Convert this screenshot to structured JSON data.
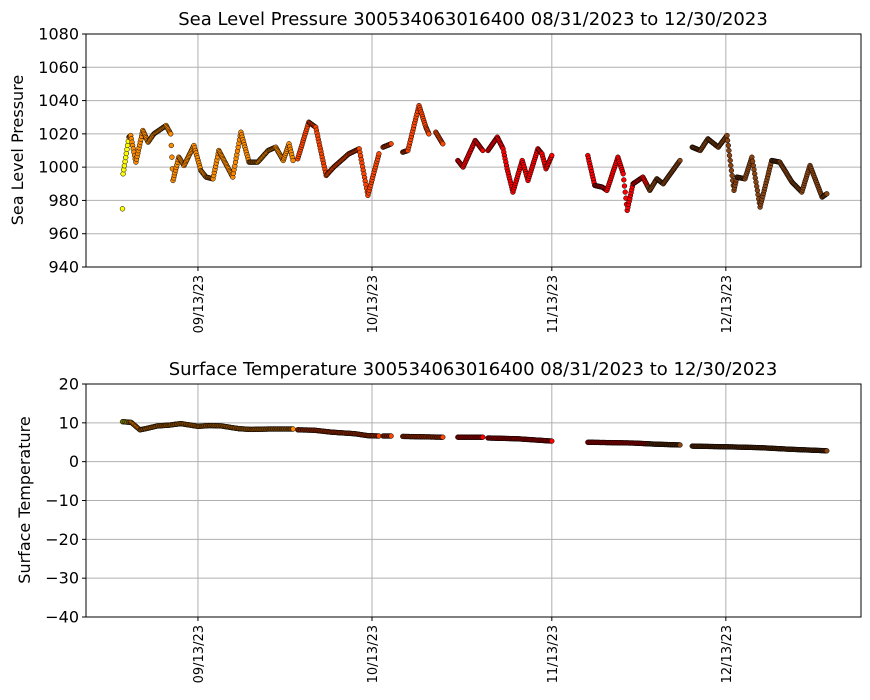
{
  "chart_data": [
    {
      "type": "scatter",
      "title": "Sea Level Pressure 300534063016400  08/31/2023 to 12/30/2023",
      "xlabel": "",
      "ylabel": "Sea Level Pressure",
      "x_units": "days since 08/31/2023",
      "xlim": [
        -6.3,
        127.3
      ],
      "ylim": [
        940,
        1080
      ],
      "yticks": [
        940,
        960,
        980,
        1000,
        1020,
        1040,
        1060,
        1080
      ],
      "xticks": [
        {
          "day": 13,
          "label": "09/13/23"
        },
        {
          "day": 43,
          "label": "10/13/23"
        },
        {
          "day": 74,
          "label": "11/13/23"
        },
        {
          "day": 104,
          "label": "12/13/23"
        }
      ],
      "grid": true,
      "segments": [
        [
          [
            0,
            975
          ],
          [
            0.1,
            996
          ],
          [
            1.1,
            1018
          ],
          [
            1.4,
            1019
          ],
          [
            2.3,
            1003
          ],
          [
            3.5,
            1022
          ],
          [
            4.4,
            1015
          ],
          [
            5.4,
            1020
          ],
          [
            7.5,
            1025
          ],
          [
            8.3,
            1020
          ],
          [
            8.7,
            992
          ],
          [
            9.7,
            1006
          ],
          [
            10.6,
            1001
          ],
          [
            12.3,
            1013
          ],
          [
            13.5,
            998
          ],
          [
            14.4,
            994
          ],
          [
            15.6,
            993
          ],
          [
            16.6,
            1010
          ],
          [
            19.0,
            994
          ],
          [
            20.4,
            1021
          ],
          [
            21.8,
            1003
          ],
          [
            23.3,
            1003
          ],
          [
            25.1,
            1010
          ],
          [
            26.4,
            1012
          ],
          [
            27.7,
            1004
          ],
          [
            28.7,
            1014
          ],
          [
            29.4,
            1004
          ]
        ],
        [
          [
            30.2,
            1005
          ],
          [
            32.1,
            1027
          ],
          [
            33.3,
            1024
          ],
          [
            35.1,
            995
          ],
          [
            36.4,
            1000
          ],
          [
            39.0,
            1008
          ],
          [
            40.8,
            1011
          ],
          [
            42.3,
            983
          ],
          [
            44.2,
            1008
          ]
        ],
        [
          [
            44.9,
            1012
          ],
          [
            46.3,
            1014
          ]
        ],
        [
          [
            48.3,
            1009
          ],
          [
            49.2,
            1010
          ],
          [
            51.1,
            1037
          ],
          [
            52.3,
            1024
          ],
          [
            52.8,
            1020
          ]
        ],
        [
          [
            54.0,
            1021
          ],
          [
            55.2,
            1014
          ]
        ],
        [
          [
            57.8,
            1004
          ],
          [
            58.7,
            1000
          ],
          [
            60.8,
            1016
          ],
          [
            62.1,
            1010
          ]
        ],
        [
          [
            63.0,
            1010
          ],
          [
            64.6,
            1018
          ],
          [
            65.6,
            1011
          ],
          [
            66.3,
            999
          ],
          [
            67.3,
            985
          ],
          [
            68.9,
            1004
          ],
          [
            69.9,
            992
          ],
          [
            71.6,
            1011
          ],
          [
            72.3,
            1008
          ],
          [
            73.0,
            999
          ],
          [
            74.0,
            1007
          ]
        ],
        [
          [
            80.2,
            1007
          ],
          [
            81.4,
            989
          ],
          [
            82.7,
            988
          ],
          [
            83.5,
            986
          ],
          [
            85.4,
            1006
          ],
          [
            86.3,
            996
          ],
          [
            87.0,
            974
          ],
          [
            88.0,
            990
          ],
          [
            89.7,
            994
          ],
          [
            90.9,
            986
          ],
          [
            92.1,
            993
          ],
          [
            93.2,
            990
          ],
          [
            96.1,
            1004
          ]
        ],
        [
          [
            98.2,
            1012
          ],
          [
            99.6,
            1010
          ],
          [
            100.9,
            1017
          ],
          [
            102.7,
            1012
          ],
          [
            104.2,
            1019
          ],
          [
            105.4,
            986
          ],
          [
            105.9,
            994
          ],
          [
            107.3,
            993
          ],
          [
            108.5,
            1006
          ],
          [
            109.9,
            976
          ],
          [
            111.9,
            1004
          ],
          [
            113.3,
            1003
          ],
          [
            115.4,
            991
          ],
          [
            117.1,
            985
          ],
          [
            118.5,
            1001
          ],
          [
            120.6,
            982
          ],
          [
            121.4,
            984
          ]
        ]
      ]
    },
    {
      "type": "scatter",
      "title": "Surface Temperature 300534063016400  08/31/2023 to 12/30/2023",
      "xlabel": "",
      "ylabel": "Surface Temperature",
      "x_units": "days since 08/31/2023",
      "xlim": [
        -6.3,
        127.3
      ],
      "ylim": [
        -40,
        20
      ],
      "yticks": [
        -40,
        -30,
        -20,
        -10,
        0,
        10,
        20
      ],
      "ytick_labels": [
        "−40",
        "−30",
        "−20",
        "−10",
        "0",
        "10",
        "20"
      ],
      "xticks": [
        {
          "day": 13,
          "label": "09/13/23"
        },
        {
          "day": 43,
          "label": "10/13/23"
        },
        {
          "day": 74,
          "label": "11/13/23"
        },
        {
          "day": 104,
          "label": "12/13/23"
        }
      ],
      "grid": true,
      "segments": [
        [
          [
            0,
            10.3
          ],
          [
            1.5,
            10.1
          ],
          [
            3,
            8.2
          ],
          [
            4,
            8.5
          ],
          [
            6,
            9.2
          ],
          [
            8,
            9.4
          ],
          [
            10,
            9.8
          ],
          [
            13,
            9.1
          ],
          [
            15,
            9.3
          ],
          [
            17,
            9.2
          ],
          [
            20,
            8.5
          ],
          [
            22,
            8.3
          ],
          [
            25,
            8.4
          ],
          [
            29.4,
            8.4
          ]
        ],
        [
          [
            30.2,
            8.2
          ],
          [
            33,
            8.1
          ],
          [
            36,
            7.6
          ],
          [
            40,
            7.2
          ],
          [
            42.3,
            6.7
          ],
          [
            44.2,
            6.6
          ]
        ],
        [
          [
            44.9,
            6.6
          ],
          [
            46.3,
            6.6
          ]
        ],
        [
          [
            48.3,
            6.5
          ],
          [
            55.2,
            6.3
          ]
        ],
        [
          [
            57.8,
            6.3
          ],
          [
            62.1,
            6.3
          ]
        ],
        [
          [
            63,
            6.1
          ],
          [
            68,
            5.9
          ],
          [
            74,
            5.3
          ]
        ],
        [
          [
            80.2,
            5.0
          ],
          [
            88,
            4.8
          ],
          [
            92,
            4.5
          ],
          [
            96.1,
            4.3
          ]
        ],
        [
          [
            98.2,
            4.0
          ],
          [
            105,
            3.8
          ],
          [
            110,
            3.6
          ],
          [
            115,
            3.2
          ],
          [
            121.4,
            2.8
          ]
        ]
      ]
    }
  ],
  "colors": {
    "start": "#ffff00",
    "early": "#ff8c00",
    "mid": "#ff4500",
    "late": "#ff0000",
    "end": "#8b4513"
  },
  "color_breaks_days": [
    1,
    29.8,
    57,
    90.5
  ]
}
